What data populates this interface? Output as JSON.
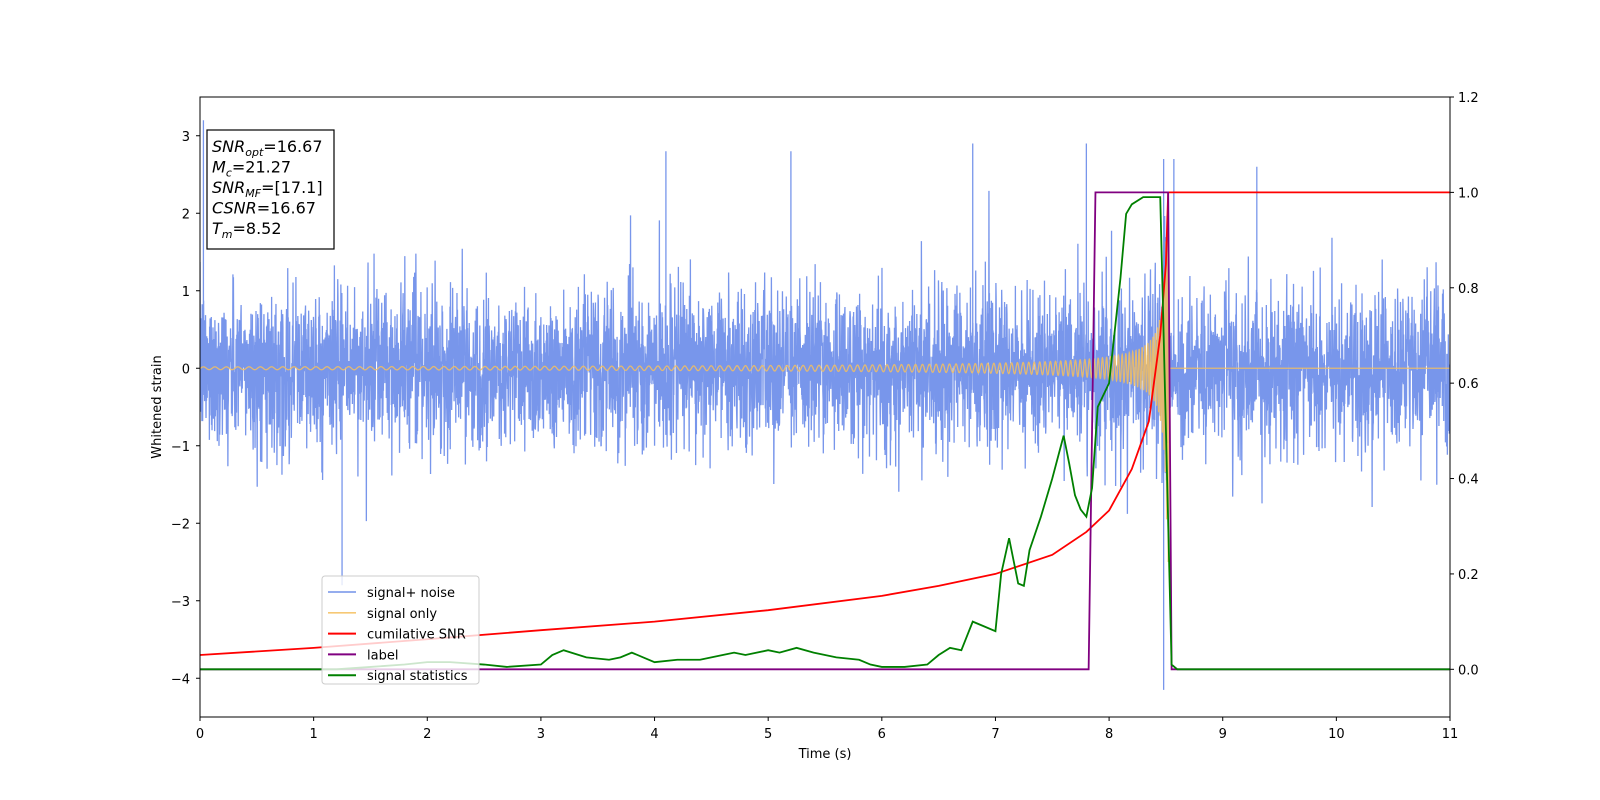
{
  "chart_data": {
    "type": "line",
    "xlabel": "Time (s)",
    "ylabel": "Whitened strain",
    "xlim": [
      0,
      11
    ],
    "ylim": [
      -4.5,
      3.5
    ],
    "y2lim": [
      -0.1,
      1.2
    ],
    "xticks": [
      "0",
      "1",
      "2",
      "3",
      "4",
      "5",
      "6",
      "7",
      "8",
      "9",
      "10",
      "11"
    ],
    "yticks": [
      "3",
      "2",
      "1",
      "0",
      "−1",
      "−2",
      "−3",
      "−4"
    ],
    "y2ticks": [
      "1.2",
      "1.0",
      "0.8",
      "0.6",
      "0.4",
      "0.2",
      "0.0"
    ],
    "grid": false,
    "legend_position": "lower-left",
    "annotation": {
      "lines": [
        {
          "var": "SNR",
          "sub": "opt",
          "value": "=16.67"
        },
        {
          "var": "M",
          "sub": "c",
          "value": "=21.27"
        },
        {
          "var": "SNR",
          "sub": "MF",
          "value": "=[17.1]"
        },
        {
          "var": "CSNR",
          "sub": "",
          "value": "=16.67"
        },
        {
          "var": "T",
          "sub": "m",
          "value": "=8.52"
        }
      ]
    },
    "series": [
      {
        "name": "signal+ noise",
        "axis": "left",
        "color": "#5a7fe6",
        "kind": "noise",
        "noise_sigma": 0.8,
        "notable_spikes": [
          [
            0.03,
            3.2
          ],
          [
            1.25,
            -2.8
          ],
          [
            4.1,
            2.8
          ],
          [
            5.2,
            2.8
          ],
          [
            6.8,
            2.9
          ],
          [
            7.8,
            2.9
          ],
          [
            8.48,
            2.7
          ],
          [
            8.48,
            -4.15
          ],
          [
            8.57,
            2.7
          ],
          [
            9.3,
            2.6
          ]
        ]
      },
      {
        "name": "signal only",
        "axis": "left",
        "color": "#f5bf5e",
        "kind": "chirp",
        "merger_time": 8.52,
        "peak_amplitude": 2.0,
        "end_values": [
          [
            8.52,
            -2.5
          ]
        ]
      },
      {
        "name": "cumilative SNR",
        "axis": "right",
        "color": "#ff0000",
        "x": [
          0,
          1,
          2,
          3,
          4,
          5,
          6,
          6.5,
          7,
          7.5,
          7.8,
          8.0,
          8.2,
          8.35,
          8.45,
          8.5,
          8.52,
          8.53,
          11
        ],
        "y": [
          0.03,
          0.045,
          0.063,
          0.082,
          0.1,
          0.124,
          0.154,
          0.175,
          0.2,
          0.24,
          0.288,
          0.333,
          0.42,
          0.52,
          0.7,
          0.85,
          1.0,
          1.0,
          1.0
        ]
      },
      {
        "name": "label",
        "axis": "right",
        "color": "#800080",
        "x": [
          0,
          7.82,
          7.88,
          8.52,
          8.55,
          11
        ],
        "y": [
          0.0,
          0.0,
          1.0,
          1.0,
          0.0,
          0.0
        ]
      },
      {
        "name": "signal statistics",
        "axis": "right",
        "color": "#008000",
        "x": [
          0,
          0.3,
          0.8,
          1.0,
          1.2,
          1.5,
          1.8,
          2.0,
          2.2,
          2.5,
          2.7,
          3.0,
          3.1,
          3.2,
          3.4,
          3.6,
          3.7,
          3.8,
          4.0,
          4.2,
          4.4,
          4.6,
          4.7,
          4.8,
          5.0,
          5.1,
          5.25,
          5.4,
          5.6,
          5.8,
          5.9,
          6.0,
          6.2,
          6.4,
          6.5,
          6.6,
          6.7,
          6.8,
          6.9,
          7.0,
          7.05,
          7.12,
          7.2,
          7.25,
          7.3,
          7.4,
          7.5,
          7.6,
          7.65,
          7.7,
          7.75,
          7.8,
          7.85,
          7.9,
          8.0,
          8.1,
          8.15,
          8.2,
          8.3,
          8.35,
          8.45,
          8.47,
          8.55,
          8.6,
          11
        ],
        "y": [
          0.0,
          0.0,
          0.0,
          0.0,
          0.0,
          0.005,
          0.01,
          0.015,
          0.015,
          0.01,
          0.005,
          0.01,
          0.03,
          0.04,
          0.025,
          0.02,
          0.025,
          0.035,
          0.015,
          0.02,
          0.02,
          0.03,
          0.035,
          0.03,
          0.04,
          0.035,
          0.045,
          0.035,
          0.025,
          0.02,
          0.01,
          0.005,
          0.005,
          0.01,
          0.03,
          0.045,
          0.04,
          0.1,
          0.09,
          0.08,
          0.2,
          0.275,
          0.18,
          0.175,
          0.25,
          0.32,
          0.4,
          0.49,
          0.43,
          0.365,
          0.335,
          0.32,
          0.38,
          0.55,
          0.6,
          0.82,
          0.955,
          0.975,
          0.99,
          0.99,
          0.99,
          0.8,
          0.01,
          0.0,
          0.0
        ]
      }
    ]
  }
}
